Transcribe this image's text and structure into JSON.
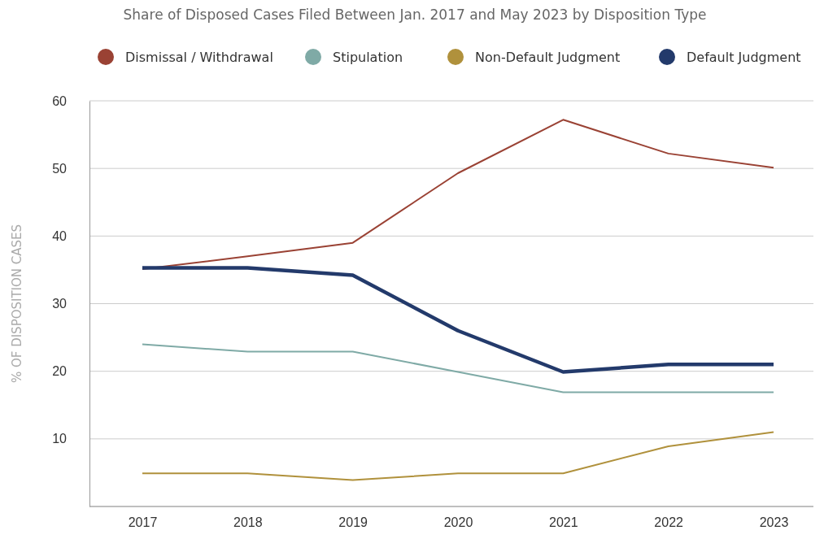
{
  "chart_data": {
    "type": "line",
    "title": "Share of Disposed Cases Filed Between Jan. 2017 and May 2023 by Disposition Type",
    "ylabel": "% OF DISPOSITION CASES",
    "categories": [
      "2017",
      "2018",
      "2019",
      "2020",
      "2021",
      "2022",
      "2023"
    ],
    "series": [
      {
        "name": "Dismissal / Withdrawal",
        "color": "#9a4234",
        "values": [
          35.1,
          37,
          39,
          49.3,
          57.2,
          52.2,
          50.1
        ]
      },
      {
        "name": "Stipulation",
        "color": "#7faaa6",
        "values": [
          24,
          22.9,
          22.9,
          19.9,
          16.9,
          16.9,
          16.9
        ]
      },
      {
        "name": "Non-Default Judgment",
        "color": "#b0913c",
        "values": [
          4.9,
          4.9,
          3.9,
          4.9,
          4.9,
          8.9,
          11
        ]
      },
      {
        "name": "Default Judgment",
        "color": "#233a6b",
        "values": [
          35.3,
          35.3,
          34.2,
          26,
          19.9,
          21,
          21
        ]
      }
    ],
    "ylim": [
      0,
      60
    ],
    "yticks": [
      {
        "value": 0,
        "label": null
      },
      10,
      20,
      30,
      40,
      50,
      60
    ],
    "grid": "y",
    "legend": "top",
    "marker": "none",
    "line_style": "solid"
  }
}
